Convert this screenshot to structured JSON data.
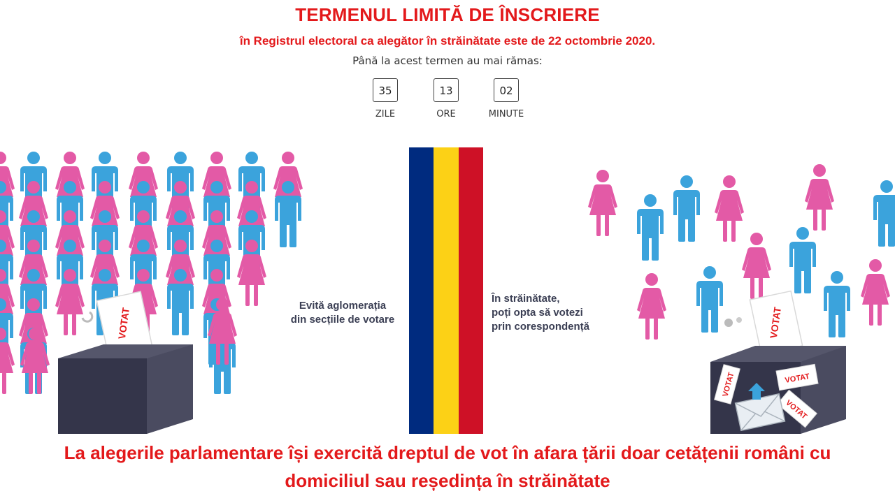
{
  "header": {
    "title": "TERMENUL LIMITĂ DE ÎNSCRIERE",
    "subtitle": "în Registrul electoral ca alegător în străinătate este de 22 octombrie 2020.",
    "remaining_text": "Până la acest termen au mai rămas:"
  },
  "countdown": [
    {
      "value": "35",
      "label": "ZILE"
    },
    {
      "value": "13",
      "label": "ORE"
    },
    {
      "value": "02",
      "label": "MINUTE"
    }
  ],
  "left_text": [
    "Evită aglomerația",
    "din secțiile de votare"
  ],
  "right_text": [
    "În străinătate,",
    "poți opta să votezi",
    "prin corespondență"
  ],
  "ballot_label": "VOTAT",
  "footer": {
    "line1": "La alegerile parlamentare își exercită dreptul de vot în afara țării doar cetățenii români cu",
    "line2": "domiciliul sau reședința în străinătate"
  },
  "colors": {
    "accent": "#e3191b",
    "flag_blue": "#002b7f",
    "flag_yellow": "#fcd116",
    "flag_red": "#ce1126",
    "woman_pink": "#e35aa6",
    "man_blue": "#3ba3dc",
    "box": "#3a3b4f"
  },
  "icons": [
    "woman-figure-icon",
    "man-figure-icon",
    "ballot-box-icon",
    "envelope-icon"
  ]
}
